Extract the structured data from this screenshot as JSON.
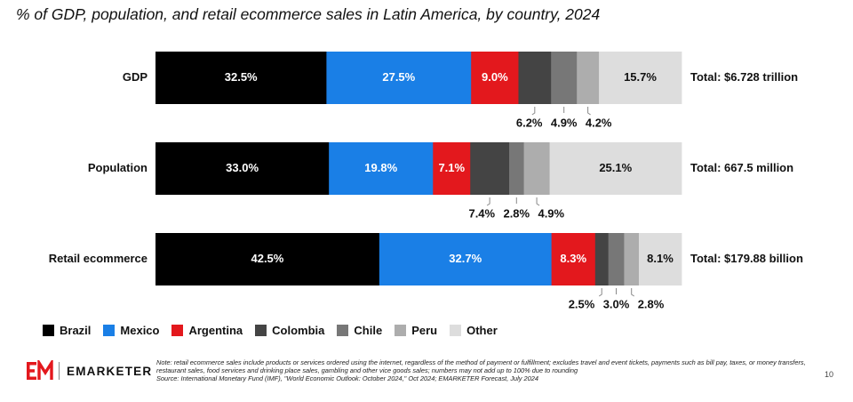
{
  "title": "% of GDP, population, and retail ecommerce sales in Latin America, by country, 2024",
  "chart_data": {
    "type": "bar",
    "orientation": "horizontal",
    "stacked": true,
    "unit": "%",
    "categories": [
      "GDP",
      "Population",
      "Retail ecommerce"
    ],
    "series": [
      {
        "name": "Brazil",
        "color": "#000000",
        "values": [
          32.5,
          33.0,
          42.5
        ],
        "labels": [
          "32.5%",
          "33.0%",
          "42.5%"
        ]
      },
      {
        "name": "Mexico",
        "color": "#1a7fe6",
        "values": [
          27.5,
          19.8,
          32.7
        ],
        "labels": [
          "27.5%",
          "19.8%",
          "32.7%"
        ]
      },
      {
        "name": "Argentina",
        "color": "#e3181d",
        "values": [
          9.0,
          7.1,
          8.3
        ],
        "labels": [
          "9.0%",
          "7.1%",
          "8.3%"
        ]
      },
      {
        "name": "Colombia",
        "color": "#444444",
        "values": [
          6.2,
          7.4,
          2.5
        ],
        "labels": [
          "6.2%",
          "7.4%",
          "2.5%"
        ]
      },
      {
        "name": "Chile",
        "color": "#777777",
        "values": [
          4.9,
          2.8,
          3.0
        ],
        "labels": [
          "4.9%",
          "2.8%",
          "3.0%"
        ]
      },
      {
        "name": "Peru",
        "color": "#adadad",
        "values": [
          4.2,
          4.9,
          2.8
        ],
        "labels": [
          "4.2%",
          "4.9%",
          "2.8%"
        ]
      },
      {
        "name": "Other",
        "color": "#dddddd",
        "values": [
          15.7,
          25.1,
          8.1
        ],
        "labels": [
          "15.7%",
          "25.1%",
          "8.1%"
        ]
      }
    ],
    "totals": [
      "Total: $6.728 trillion",
      "Total: 667.5 million",
      "Total: $179.88 billion"
    ],
    "legend_position": "bottom-left"
  },
  "legend": [
    "Brazil",
    "Mexico",
    "Argentina",
    "Colombia",
    "Chile",
    "Peru",
    "Other"
  ],
  "brand": "EMARKETER",
  "notes": [
    "Note: retail ecommerce sales include products or services ordered using the internet, regardless of the method of payment or fulfillment; excludes travel and event tickets, payments such as bill pay, taxes, or money transfers, restaurant sales, food services and drinking place sales, gambling and other vice goods sales; numbers may not add up to 100% due to rounding",
    "Source: International Monetary Fund (IMF), \"World Economic Outlook: October 2024,\" Oct 2024; EMARKETER Forecast, July 2024"
  ],
  "page_number": "10"
}
